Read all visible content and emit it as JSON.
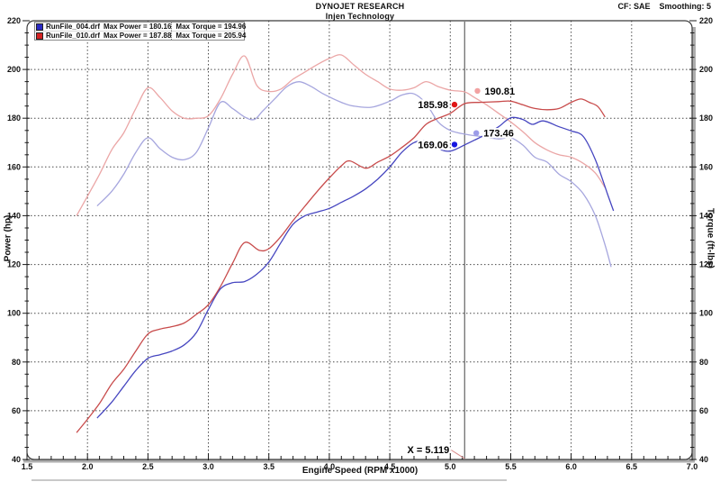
{
  "header": {
    "title": "DYNOJET RESEARCH",
    "subtitle": "Injen Technology",
    "cf_label": "CF: SAE",
    "smoothing_label": "Smoothing: 5"
  },
  "legend": {
    "rows": [
      {
        "file": "RunFile_004.drf",
        "max_power": "Max Power = 180.16",
        "max_torque": "Max Torque = 194.96",
        "swatch_style": "background:#2a2ac4"
      },
      {
        "file": "RunFile_010.drf",
        "max_power": "Max Power = 187.88",
        "max_torque": "Max Torque = 205.94",
        "swatch_style": "background:#d42222"
      }
    ]
  },
  "chart_data": {
    "type": "line",
    "title": "DYNOJET RESEARCH",
    "subtitle": "Injen Technology",
    "xlabel": "Engine Speed (RPM x1000)",
    "ylabel_left": "Power (hp)",
    "ylabel_right": "Torque (ft-lbs)",
    "xlim": [
      1.5,
      7.0
    ],
    "ylim": [
      40,
      220
    ],
    "x_major_step": 0.5,
    "x_minor_step": 0.1,
    "y_major_step": 20,
    "y_minor_step": 5,
    "grid": "dotted",
    "legend_position": "top-left",
    "series": [
      {
        "id": "runfile_004_torque",
        "name": "RunFile_004.drf Torque (ft-lbs)",
        "color": "#a6a6de",
        "max": 194.96,
        "points": [
          [
            2.08,
            144
          ],
          [
            2.2,
            150
          ],
          [
            2.3,
            157
          ],
          [
            2.4,
            166
          ],
          [
            2.5,
            172
          ],
          [
            2.6,
            167.5
          ],
          [
            2.7,
            164
          ],
          [
            2.8,
            163
          ],
          [
            2.9,
            166
          ],
          [
            3.0,
            176
          ],
          [
            3.1,
            186.5
          ],
          [
            3.2,
            184
          ],
          [
            3.3,
            180.5
          ],
          [
            3.38,
            179.5
          ],
          [
            3.45,
            183
          ],
          [
            3.55,
            188
          ],
          [
            3.65,
            193
          ],
          [
            3.75,
            194.96
          ],
          [
            3.85,
            193
          ],
          [
            3.95,
            190
          ],
          [
            4.1,
            186.5
          ],
          [
            4.2,
            185
          ],
          [
            4.35,
            184.5
          ],
          [
            4.5,
            187
          ],
          [
            4.6,
            189.5
          ],
          [
            4.7,
            190
          ],
          [
            4.8,
            186
          ],
          [
            4.9,
            178.5
          ],
          [
            5.0,
            175
          ],
          [
            5.119,
            173.46
          ],
          [
            5.25,
            172.5
          ],
          [
            5.4,
            171.5
          ],
          [
            5.5,
            172
          ],
          [
            5.6,
            169
          ],
          [
            5.7,
            164
          ],
          [
            5.8,
            162
          ],
          [
            5.9,
            157
          ],
          [
            6.0,
            154
          ],
          [
            6.1,
            149
          ],
          [
            6.2,
            140
          ],
          [
            6.28,
            128
          ],
          [
            6.33,
            119
          ]
        ]
      },
      {
        "id": "runfile_010_torque",
        "name": "RunFile_010.drf Torque (ft-lbs)",
        "color": "#eba6a6",
        "max": 205.94,
        "points": [
          [
            1.91,
            140
          ],
          [
            2.0,
            148
          ],
          [
            2.1,
            157
          ],
          [
            2.2,
            167
          ],
          [
            2.3,
            174
          ],
          [
            2.4,
            184
          ],
          [
            2.5,
            192.5
          ],
          [
            2.6,
            188.5
          ],
          [
            2.7,
            183
          ],
          [
            2.8,
            180
          ],
          [
            2.9,
            180
          ],
          [
            3.0,
            181
          ],
          [
            3.1,
            188
          ],
          [
            3.2,
            198
          ],
          [
            3.3,
            205.5
          ],
          [
            3.4,
            193.5
          ],
          [
            3.5,
            191
          ],
          [
            3.6,
            192
          ],
          [
            3.7,
            196
          ],
          [
            3.8,
            199
          ],
          [
            3.9,
            202
          ],
          [
            4.0,
            204.5
          ],
          [
            4.1,
            205.94
          ],
          [
            4.2,
            202
          ],
          [
            4.3,
            198
          ],
          [
            4.4,
            195
          ],
          [
            4.5,
            192
          ],
          [
            4.6,
            191.5
          ],
          [
            4.7,
            192.5
          ],
          [
            4.8,
            195
          ],
          [
            4.9,
            193
          ],
          [
            5.0,
            191.5
          ],
          [
            5.119,
            190.81
          ],
          [
            5.2,
            188.5
          ],
          [
            5.3,
            185.5
          ],
          [
            5.4,
            182
          ],
          [
            5.5,
            178.5
          ],
          [
            5.6,
            174.5
          ],
          [
            5.7,
            170
          ],
          [
            5.8,
            167
          ],
          [
            5.9,
            165
          ],
          [
            6.0,
            164
          ],
          [
            6.1,
            161.5
          ],
          [
            6.2,
            157.5
          ],
          [
            6.28,
            151.5
          ]
        ]
      },
      {
        "id": "runfile_004_power",
        "name": "RunFile_004.drf Power (hp)",
        "color": "#4646c0",
        "max": 180.16,
        "points": [
          [
            2.08,
            57
          ],
          [
            2.2,
            63.5
          ],
          [
            2.3,
            70
          ],
          [
            2.4,
            76.5
          ],
          [
            2.5,
            81.5
          ],
          [
            2.6,
            83
          ],
          [
            2.7,
            84.5
          ],
          [
            2.8,
            87
          ],
          [
            2.9,
            92
          ],
          [
            3.0,
            101.5
          ],
          [
            3.1,
            110
          ],
          [
            3.2,
            112.5
          ],
          [
            3.3,
            113
          ],
          [
            3.4,
            116
          ],
          [
            3.5,
            121
          ],
          [
            3.6,
            129
          ],
          [
            3.7,
            136.5
          ],
          [
            3.8,
            140
          ],
          [
            3.9,
            141.5
          ],
          [
            4.0,
            143
          ],
          [
            4.1,
            145.5
          ],
          [
            4.2,
            148
          ],
          [
            4.3,
            151
          ],
          [
            4.4,
            155
          ],
          [
            4.5,
            160
          ],
          [
            4.6,
            166
          ],
          [
            4.7,
            170
          ],
          [
            4.8,
            170.5
          ],
          [
            4.9,
            167.5
          ],
          [
            5.0,
            166.5
          ],
          [
            5.119,
            169.06
          ],
          [
            5.2,
            171
          ],
          [
            5.3,
            173.5
          ],
          [
            5.4,
            176.5
          ],
          [
            5.5,
            180.16
          ],
          [
            5.6,
            179.5
          ],
          [
            5.68,
            177.5
          ],
          [
            5.77,
            178.9
          ],
          [
            5.9,
            176.5
          ],
          [
            6.0,
            174.8
          ],
          [
            6.1,
            172.5
          ],
          [
            6.2,
            163
          ],
          [
            6.3,
            149
          ],
          [
            6.35,
            142
          ]
        ]
      },
      {
        "id": "runfile_010_power",
        "name": "RunFile_010.drf Power (hp)",
        "color": "#c84b4b",
        "max": 187.88,
        "points": [
          [
            1.91,
            51
          ],
          [
            2.0,
            56.5
          ],
          [
            2.1,
            63
          ],
          [
            2.2,
            71
          ],
          [
            2.3,
            77
          ],
          [
            2.4,
            84.5
          ],
          [
            2.5,
            91.5
          ],
          [
            2.6,
            93.5
          ],
          [
            2.7,
            94.5
          ],
          [
            2.8,
            96
          ],
          [
            2.9,
            99.5
          ],
          [
            3.0,
            103.5
          ],
          [
            3.1,
            111
          ],
          [
            3.2,
            120.5
          ],
          [
            3.3,
            129
          ],
          [
            3.42,
            125.8
          ],
          [
            3.5,
            126.5
          ],
          [
            3.6,
            131.5
          ],
          [
            3.7,
            138
          ],
          [
            3.8,
            144
          ],
          [
            3.9,
            150
          ],
          [
            4.0,
            155.5
          ],
          [
            4.1,
            160.5
          ],
          [
            4.17,
            162.5
          ],
          [
            4.3,
            159.5
          ],
          [
            4.4,
            162
          ],
          [
            4.5,
            164.5
          ],
          [
            4.6,
            168
          ],
          [
            4.7,
            172
          ],
          [
            4.8,
            177.5
          ],
          [
            4.9,
            180
          ],
          [
            5.0,
            182
          ],
          [
            5.119,
            185.98
          ],
          [
            5.25,
            186.5
          ],
          [
            5.4,
            186.8
          ],
          [
            5.5,
            187
          ],
          [
            5.6,
            185.5
          ],
          [
            5.7,
            184
          ],
          [
            5.8,
            183.5
          ],
          [
            5.9,
            184
          ],
          [
            6.0,
            186.5
          ],
          [
            6.08,
            187.88
          ],
          [
            6.15,
            186.5
          ],
          [
            6.22,
            184.8
          ],
          [
            6.28,
            180.5
          ]
        ]
      }
    ],
    "cursor": {
      "x": 5.119,
      "x_label": "X = 5.119",
      "readouts": [
        {
          "series": "runfile_010_power",
          "text": "185.98",
          "value": 185.98,
          "dot_rpm": 5.035,
          "dot_value": 185.6,
          "dot_color": "#e01616",
          "label_side": "left"
        },
        {
          "series": "runfile_010_torque",
          "text": "190.81",
          "value": 190.81,
          "dot_rpm": 5.225,
          "dot_value": 191.2,
          "dot_color": "#f2a2a2",
          "label_side": "right"
        },
        {
          "series": "runfile_004_torque",
          "text": "173.46",
          "value": 173.46,
          "dot_rpm": 5.215,
          "dot_value": 173.9,
          "dot_color": "#9c9ce8",
          "label_side": "right"
        },
        {
          "series": "runfile_004_power",
          "text": "169.06",
          "value": 169.06,
          "dot_rpm": 5.035,
          "dot_value": 169.2,
          "dot_color": "#1616e0",
          "label_side": "left"
        }
      ]
    }
  }
}
